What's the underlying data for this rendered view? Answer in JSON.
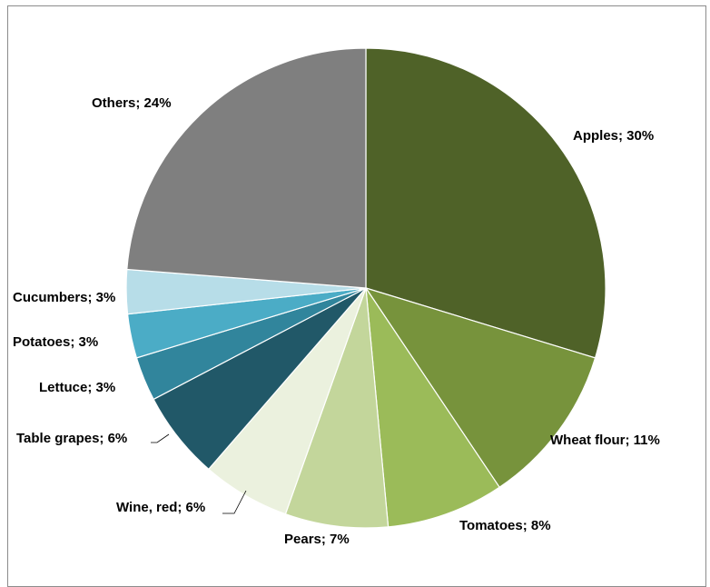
{
  "chart_data": {
    "type": "pie",
    "title": "",
    "start_angle_deg": 0,
    "direction": "clockwise",
    "slices": [
      {
        "label": "Apples",
        "value": 30,
        "label_text": "Apples; 30%",
        "color": "#4f6228"
      },
      {
        "label": "Wheat flour",
        "value": 11,
        "label_text": "Wheat flour; 11%",
        "color": "#77933c"
      },
      {
        "label": "Tomatoes",
        "value": 8,
        "label_text": "Tomatoes; 8%",
        "color": "#9bbb59"
      },
      {
        "label": "Pears",
        "value": 7,
        "label_text": "Pears; 7%",
        "color": "#c3d69b"
      },
      {
        "label": "Wine, red",
        "value": 6,
        "label_text": "Wine, red; 6%",
        "color": "#ebf1de"
      },
      {
        "label": "Table grapes",
        "value": 6,
        "label_text": "Table grapes; 6%",
        "color": "#215868"
      },
      {
        "label": "Lettuce",
        "value": 3,
        "label_text": "Lettuce; 3%",
        "color": "#31859c"
      },
      {
        "label": "Potatoes",
        "value": 3,
        "label_text": "Potatoes; 3%",
        "color": "#4bacc6"
      },
      {
        "label": "Cucumbers",
        "value": 3,
        "label_text": "Cucumbers; 3%",
        "color": "#b7dde8"
      },
      {
        "label": "Others",
        "value": 24,
        "label_text": "Others; 24%",
        "color": "#7f7f7f"
      }
    ]
  }
}
